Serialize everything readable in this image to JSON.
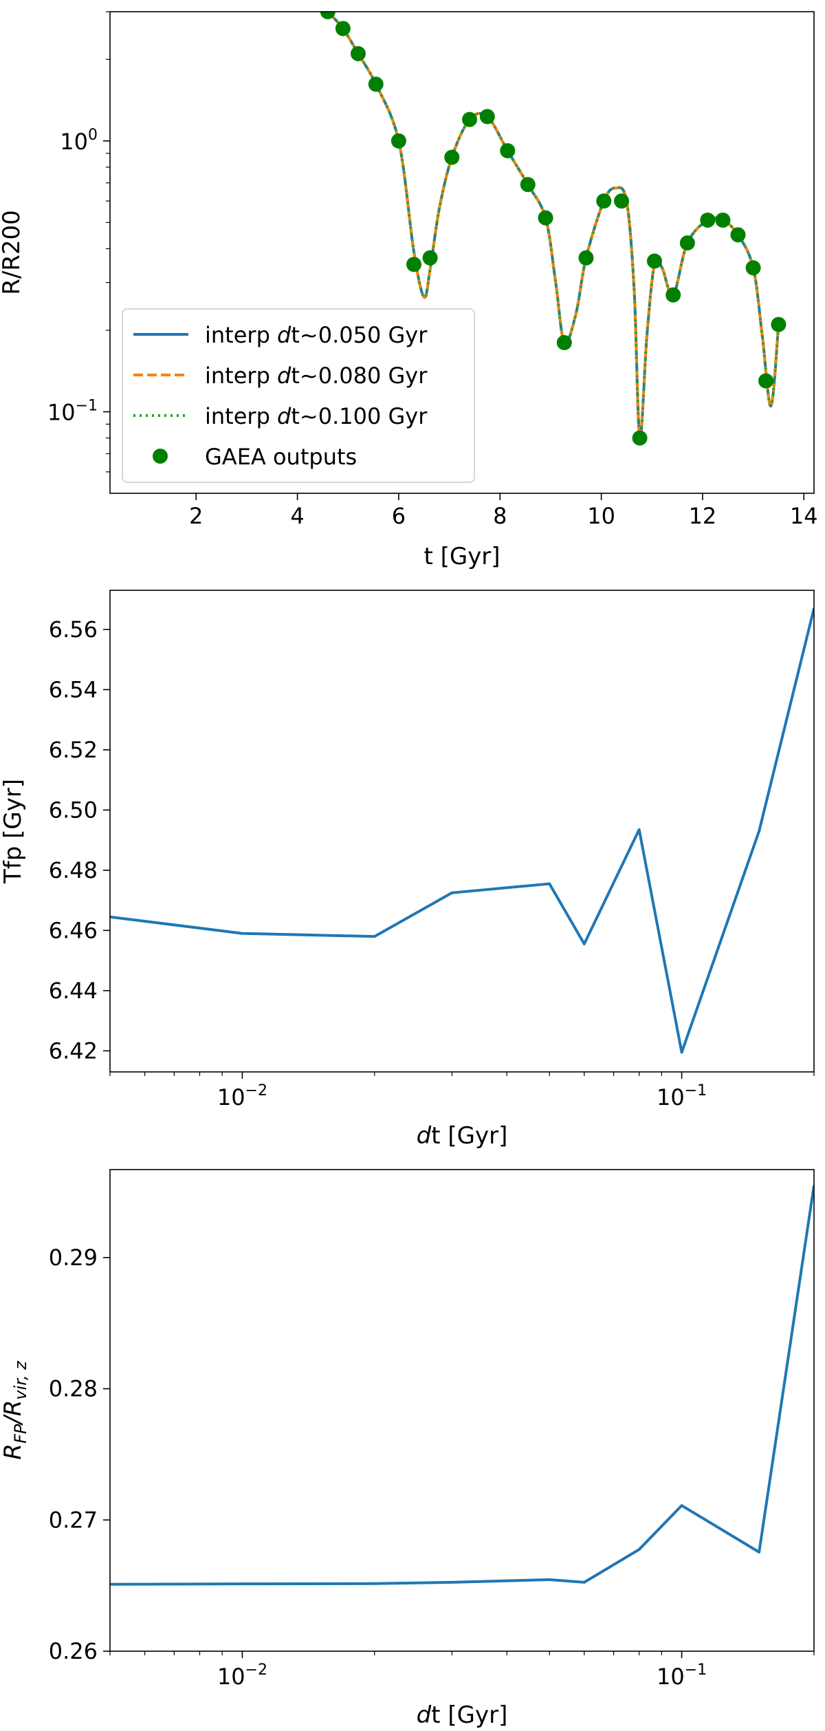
{
  "chart_data": [
    {
      "type": "line",
      "xlabel": "t [Gyr]",
      "ylabel": "R/R200",
      "yscale": "log",
      "xlim": [
        0.3,
        14.2
      ],
      "ylim": [
        0.05,
        3.0
      ],
      "x_ticks": [
        {
          "value": 2,
          "label": "2"
        },
        {
          "value": 4,
          "label": "4"
        },
        {
          "value": 6,
          "label": "6"
        },
        {
          "value": 8,
          "label": "8"
        },
        {
          "value": 10,
          "label": "10"
        },
        {
          "value": 12,
          "label": "12"
        },
        {
          "value": 14,
          "label": "14"
        }
      ],
      "y_ticks": [
        {
          "value": 1.0,
          "base": "10",
          "exp": "0"
        },
        {
          "value": 0.1,
          "base": "10",
          "exp": "−1"
        }
      ],
      "legend": {
        "placement": "lower-left",
        "entries": [
          {
            "prefix": "interp ",
            "ital": "d",
            "rest": "t~0.050 Gyr",
            "color": "#1f77b4",
            "style": "solid"
          },
          {
            "prefix": "interp ",
            "ital": "d",
            "rest": "t~0.080 Gyr",
            "color": "#ff7f0e",
            "style": "dashed"
          },
          {
            "prefix": "interp ",
            "ital": "d",
            "rest": "t~0.100 Gyr",
            "color": "#2ca02c",
            "style": "dotted"
          },
          {
            "prefix": "",
            "ital": "",
            "rest": "GAEA outputs",
            "color": "#008000",
            "style": "marker"
          }
        ]
      },
      "series": [
        {
          "name": "interp dt~0.050 Gyr",
          "color": "#1f77b4",
          "style": "solid"
        },
        {
          "name": "interp dt~0.080 Gyr",
          "color": "#ff7f0e",
          "style": "dashed"
        },
        {
          "name": "interp dt~0.100 Gyr",
          "color": "#2ca02c",
          "style": "dotted"
        },
        {
          "name": "GAEA outputs",
          "color": "#008000",
          "style": "marker"
        }
      ],
      "curve_points": [
        [
          4.6,
          3.0
        ],
        [
          4.9,
          2.6
        ],
        [
          5.2,
          2.1
        ],
        [
          5.55,
          1.62
        ],
        [
          6.0,
          1.0
        ],
        [
          6.3,
          0.39
        ],
        [
          6.5,
          0.265
        ],
        [
          6.62,
          0.335
        ],
        [
          6.8,
          0.56
        ],
        [
          7.05,
          0.87
        ],
        [
          7.4,
          1.2
        ],
        [
          7.75,
          1.23
        ],
        [
          8.15,
          0.92
        ],
        [
          8.55,
          0.69
        ],
        [
          8.9,
          0.52
        ],
        [
          9.1,
          0.3
        ],
        [
          9.27,
          0.18
        ],
        [
          9.5,
          0.23
        ],
        [
          9.7,
          0.37
        ],
        [
          10.05,
          0.6
        ],
        [
          10.28,
          0.67
        ],
        [
          10.5,
          0.6
        ],
        [
          10.65,
          0.28
        ],
        [
          10.76,
          0.08
        ],
        [
          10.9,
          0.19
        ],
        [
          11.05,
          0.35
        ],
        [
          11.2,
          0.34
        ],
        [
          11.42,
          0.27
        ],
        [
          11.7,
          0.42
        ],
        [
          12.1,
          0.51
        ],
        [
          12.4,
          0.51
        ],
        [
          12.7,
          0.45
        ],
        [
          13.0,
          0.34
        ],
        [
          13.18,
          0.19
        ],
        [
          13.35,
          0.105
        ],
        [
          13.5,
          0.21
        ]
      ],
      "gaea_outputs": {
        "x": [
          4.6,
          4.9,
          5.2,
          5.55,
          6.0,
          6.3,
          6.62,
          7.05,
          7.4,
          7.75,
          8.15,
          8.55,
          8.9,
          9.27,
          9.7,
          10.05,
          10.4,
          10.76,
          11.05,
          11.42,
          11.7,
          12.1,
          12.4,
          12.7,
          13.0,
          13.25,
          13.5
        ],
        "y": [
          3.0,
          2.6,
          2.1,
          1.62,
          1.0,
          0.35,
          0.37,
          0.87,
          1.2,
          1.23,
          0.92,
          0.69,
          0.52,
          0.18,
          0.37,
          0.6,
          0.6,
          0.08,
          0.36,
          0.27,
          0.42,
          0.51,
          0.51,
          0.45,
          0.34,
          0.13,
          0.21
        ]
      }
    },
    {
      "type": "line",
      "xlabel_ital": "d",
      "xlabel_rest": "t [Gyr]",
      "ylabel": "Tfp [Gyr]",
      "xscale": "log",
      "xlim": [
        0.005,
        0.2
      ],
      "ylim": [
        6.413,
        6.573
      ],
      "x_ticks": [
        {
          "value": 0.01,
          "base": "10",
          "exp": "−2"
        },
        {
          "value": 0.1,
          "base": "10",
          "exp": "−1"
        }
      ],
      "y_ticks": [
        {
          "value": 6.42,
          "label": "6.42"
        },
        {
          "value": 6.44,
          "label": "6.44"
        },
        {
          "value": 6.46,
          "label": "6.46"
        },
        {
          "value": 6.48,
          "label": "6.48"
        },
        {
          "value": 6.5,
          "label": "6.50"
        },
        {
          "value": 6.52,
          "label": "6.52"
        },
        {
          "value": 6.54,
          "label": "6.54"
        },
        {
          "value": 6.56,
          "label": "6.56"
        }
      ],
      "series": [
        {
          "color": "#1f77b4",
          "x": [
            0.005,
            0.01,
            0.02,
            0.03,
            0.05,
            0.06,
            0.08,
            0.1,
            0.15,
            0.2
          ],
          "y": [
            6.4645,
            6.459,
            6.458,
            6.4725,
            6.4755,
            6.4555,
            6.4935,
            6.4195,
            6.493,
            6.567
          ]
        }
      ]
    },
    {
      "type": "line",
      "xlabel_ital": "d",
      "xlabel_rest": "t [Gyr]",
      "ylabel_main": "R",
      "ylabel_sub1": "FP",
      "ylabel_mid": "/R",
      "ylabel_sub2": "vir, z",
      "xscale": "log",
      "xlim": [
        0.005,
        0.2
      ],
      "ylim": [
        0.26,
        0.2967
      ],
      "x_ticks": [
        {
          "value": 0.01,
          "base": "10",
          "exp": "−2"
        },
        {
          "value": 0.1,
          "base": "10",
          "exp": "−1"
        }
      ],
      "y_ticks": [
        {
          "value": 0.26,
          "label": "0.26"
        },
        {
          "value": 0.27,
          "label": "0.27"
        },
        {
          "value": 0.28,
          "label": "0.28"
        },
        {
          "value": 0.29,
          "label": "0.29"
        }
      ],
      "series": [
        {
          "color": "#1f77b4",
          "x": [
            0.005,
            0.01,
            0.02,
            0.03,
            0.05,
            0.06,
            0.08,
            0.1,
            0.15,
            0.2
          ],
          "y": [
            0.2651,
            0.26513,
            0.26515,
            0.26525,
            0.26545,
            0.26525,
            0.26775,
            0.2711,
            0.26755,
            0.2955
          ]
        }
      ]
    }
  ]
}
